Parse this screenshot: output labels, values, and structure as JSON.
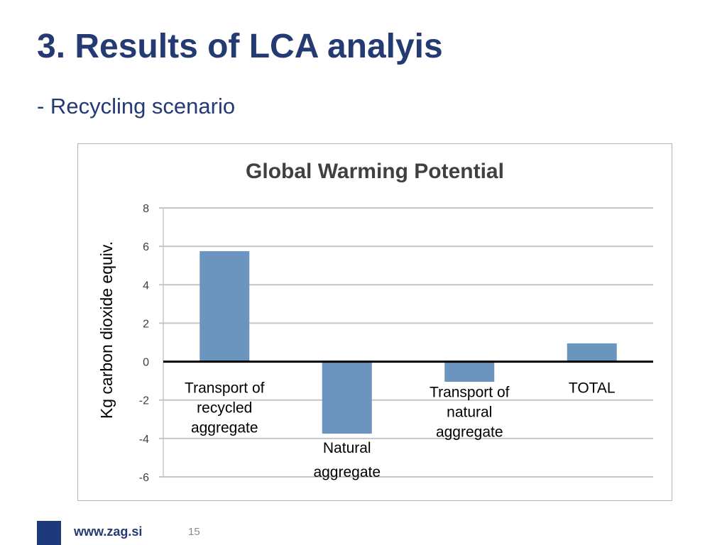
{
  "slide": {
    "title": "3. Results of LCA analyis",
    "subtitle": "- Recycling scenario"
  },
  "footer": {
    "website": "www.zag.si",
    "page_number": "15",
    "brand_color": "#1f3a7a"
  },
  "colors": {
    "title": "#243a73",
    "bar": "#6b94be",
    "grid": "#c6c6c6",
    "zero_line": "#000000"
  },
  "chart_data": {
    "type": "bar",
    "title": "Global Warming Potential",
    "xlabel": "",
    "ylabel": "Kg carbon dioxide equiv.",
    "ylim": [
      -6,
      8
    ],
    "yticks": [
      8,
      6,
      4,
      2,
      0,
      -2,
      -4,
      -6
    ],
    "grid": true,
    "legend": "none",
    "categories": [
      "Transport of recycled aggregate",
      "Natural aggregate",
      "Transport of natural aggregate",
      "TOTAL"
    ],
    "category_labels": [
      [
        "Transport of",
        "recycled",
        "aggregate"
      ],
      [
        "Natural",
        "aggregate"
      ],
      [
        "Transport of",
        "natural",
        "aggregate"
      ],
      [
        "TOTAL"
      ]
    ],
    "values": [
      5.75,
      -3.75,
      -1.05,
      0.95
    ]
  }
}
